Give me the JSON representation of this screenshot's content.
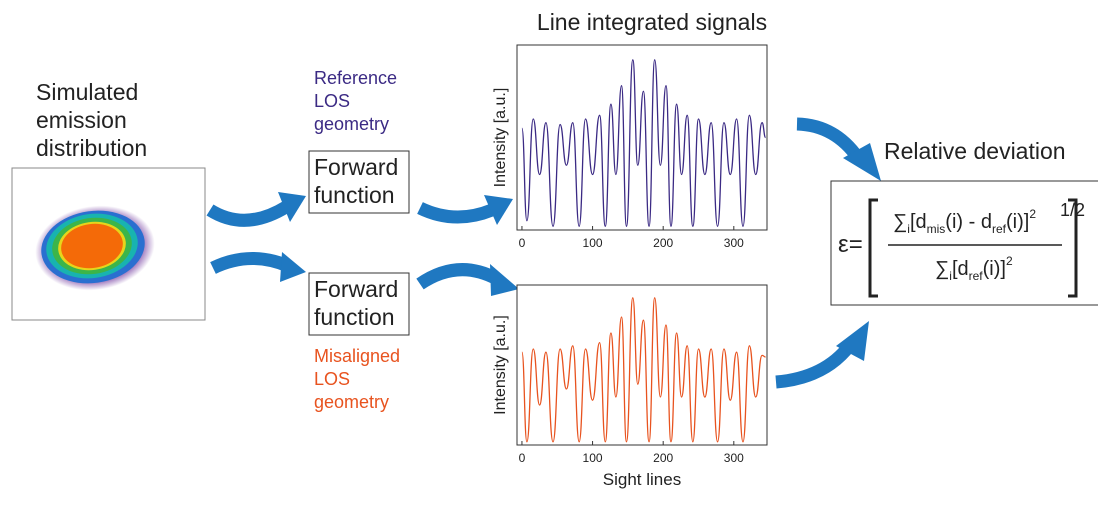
{
  "source_label": [
    "Simulated",
    "emission",
    "distribution"
  ],
  "reference_label": [
    "Reference",
    "LOS",
    "geometry"
  ],
  "misaligned_label": [
    "Misaligned",
    "LOS",
    "geometry"
  ],
  "forward_box_1": [
    "Forward",
    "function"
  ],
  "forward_box_2": [
    "Forward",
    "function"
  ],
  "result_label": "Relative deviation",
  "formula": {
    "lhs": "ε=",
    "numerator": [
      "∑",
      "i",
      "[d",
      "mis",
      "(i) - d",
      "ref",
      "(i)]",
      "2"
    ],
    "denominator": [
      "∑",
      "i",
      "[d",
      "ref",
      "(i)]",
      "2"
    ],
    "exponent": "1/2"
  },
  "chart_data": [
    {
      "type": "line",
      "title": "Line integrated signals",
      "ylabel": "Intensity [a.u.]",
      "color": "#3b2a84",
      "xlim": [
        -7,
        347
      ],
      "ylim": [
        0,
        1
      ],
      "xticks": [
        0,
        100,
        200,
        300
      ],
      "x": [
        0,
        7,
        16,
        25,
        34,
        44,
        54,
        63,
        72,
        81,
        90,
        100,
        110,
        118,
        126,
        133,
        141,
        148,
        157,
        164,
        172,
        180,
        188,
        196,
        204,
        211,
        219,
        226,
        234,
        242,
        250,
        259,
        268,
        277,
        286,
        295,
        304,
        313,
        322,
        331,
        340,
        345
      ],
      "values": [
        0.55,
        0.05,
        0.6,
        0.3,
        0.58,
        0.02,
        0.57,
        0.35,
        0.58,
        0.02,
        0.6,
        0.3,
        0.62,
        0.02,
        0.68,
        0.3,
        0.78,
        0.02,
        0.92,
        0.35,
        0.75,
        0.02,
        0.92,
        0.35,
        0.78,
        0.02,
        0.68,
        0.3,
        0.62,
        0.02,
        0.6,
        0.3,
        0.58,
        0.02,
        0.58,
        0.3,
        0.6,
        0.02,
        0.62,
        0.3,
        0.58,
        0.5
      ]
    },
    {
      "type": "line",
      "ylabel": "Intensity [a.u.]",
      "xlabel": "Sight lines",
      "color": "#e8531f",
      "xlim": [
        -7,
        347
      ],
      "ylim": [
        0,
        1
      ],
      "xticks": [
        0,
        100,
        200,
        300
      ],
      "x": [
        0,
        7,
        16,
        25,
        34,
        44,
        54,
        63,
        72,
        81,
        90,
        100,
        110,
        118,
        126,
        133,
        141,
        148,
        157,
        164,
        172,
        180,
        188,
        196,
        204,
        211,
        219,
        226,
        234,
        242,
        250,
        259,
        268,
        277,
        286,
        295,
        304,
        313,
        322,
        331,
        340,
        345
      ],
      "values": [
        0.58,
        0.02,
        0.6,
        0.25,
        0.58,
        0.02,
        0.6,
        0.35,
        0.62,
        0.02,
        0.6,
        0.28,
        0.64,
        0.02,
        0.7,
        0.3,
        0.8,
        0.02,
        0.92,
        0.38,
        0.78,
        0.02,
        0.92,
        0.3,
        0.75,
        0.02,
        0.7,
        0.3,
        0.62,
        0.02,
        0.6,
        0.3,
        0.6,
        0.02,
        0.6,
        0.28,
        0.58,
        0.02,
        0.62,
        0.3,
        0.56,
        0.55
      ]
    }
  ]
}
